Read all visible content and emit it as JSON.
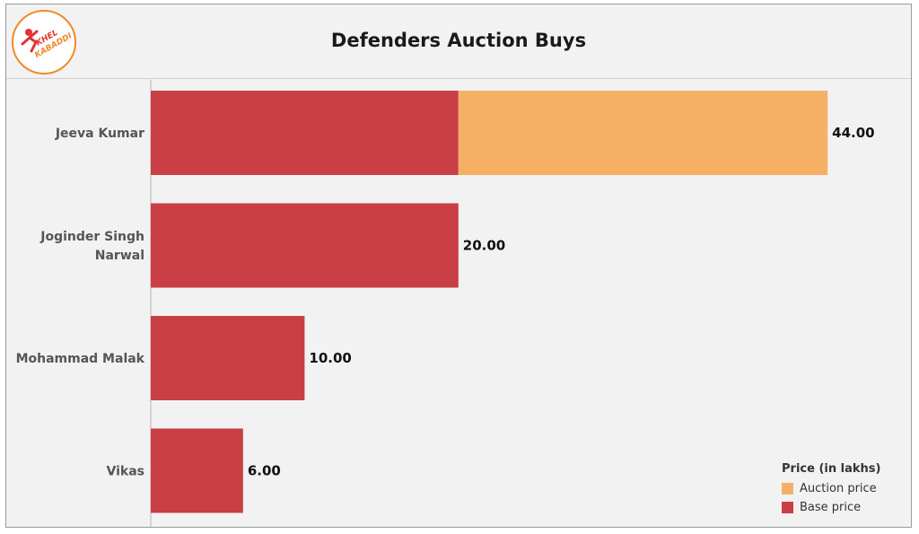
{
  "header": {
    "title": "Defenders Auction Buys",
    "logo_text": "KHEL KABADDI"
  },
  "colors": {
    "base": "#c93f45",
    "auction": "#f6b066",
    "text": "#111111"
  },
  "legend": {
    "title": "Price (in lakhs)",
    "items": [
      {
        "label": "Auction price",
        "color": "#f6b066"
      },
      {
        "label": "Base price",
        "color": "#c93f45"
      }
    ]
  },
  "chart_data": {
    "type": "bar",
    "orientation": "horizontal",
    "stacked": true,
    "title": "Defenders Auction Buys",
    "categories": [
      "Jeeva Kumar",
      "Joginder Singh Narwal",
      "Mohammad Malak",
      "Vikas"
    ],
    "series": [
      {
        "name": "Base price",
        "values": [
          20,
          20,
          10,
          6
        ]
      },
      {
        "name": "Auction price",
        "values": [
          24,
          0,
          0,
          0
        ]
      }
    ],
    "totals": [
      44,
      20,
      10,
      6
    ],
    "total_labels": [
      "44.00",
      "20.00",
      "10.00",
      "6.00"
    ],
    "xlim": [
      0,
      55
    ],
    "legend_position": "bottom-right",
    "grid": false
  }
}
